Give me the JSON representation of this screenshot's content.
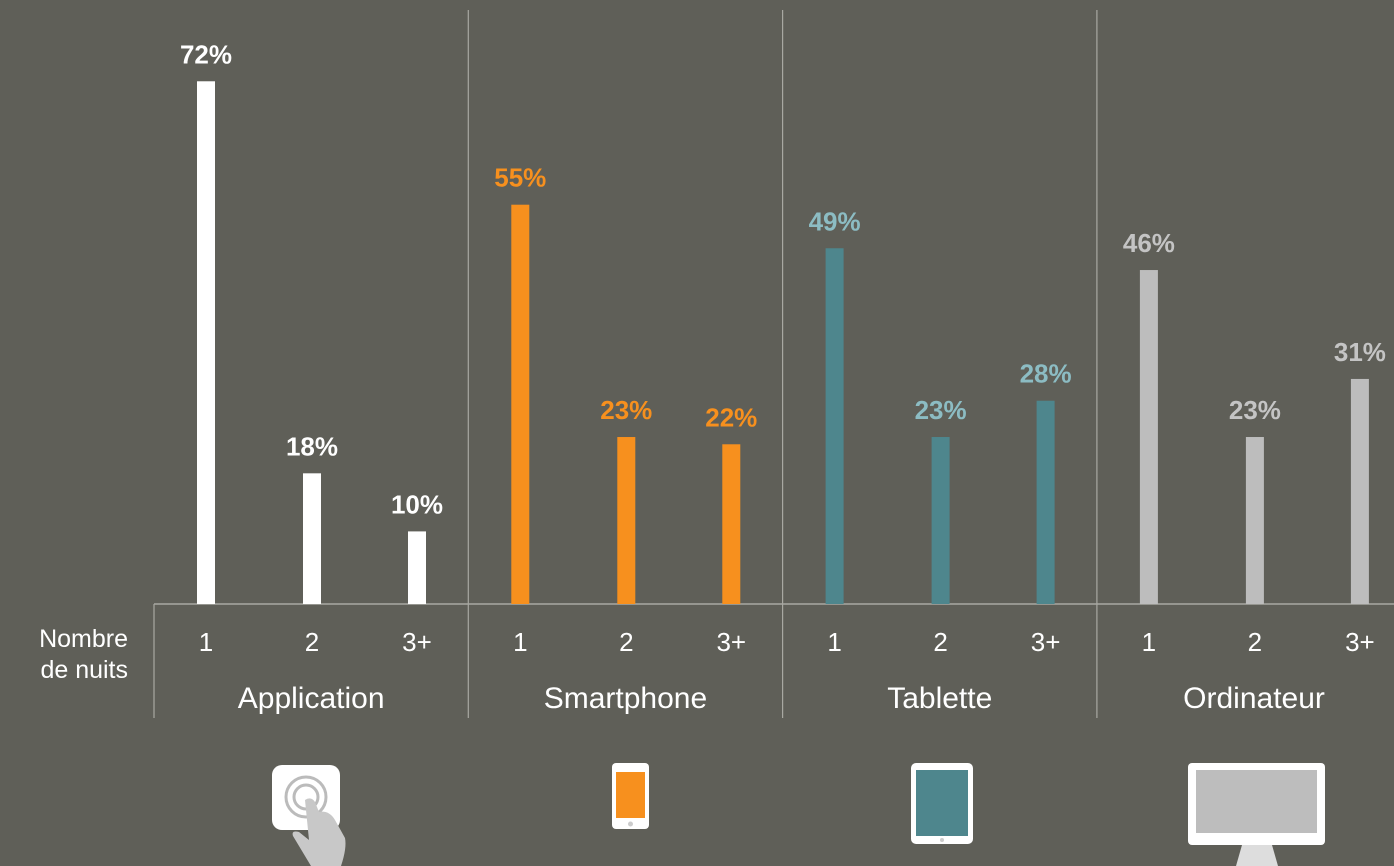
{
  "chart_data": {
    "type": "bar",
    "x_label": "Nombre de nuits",
    "groups": [
      {
        "name": "Application",
        "color": "#ffffff",
        "label_color": "#ffffff",
        "categories": [
          "1",
          "2",
          "3+"
        ],
        "values": [
          72,
          18,
          10
        ],
        "value_labels": [
          "72%",
          "18%",
          "10%"
        ]
      },
      {
        "name": "Smartphone",
        "color": "#f7901e",
        "label_color": "#f7901e",
        "categories": [
          "1",
          "2",
          "3+"
        ],
        "values": [
          55,
          23,
          22
        ],
        "value_labels": [
          "55%",
          "23%",
          "22%"
        ]
      },
      {
        "name": "Tablette",
        "color": "#4e868d",
        "label_color": "#8cbcc3",
        "categories": [
          "1",
          "2",
          "3+"
        ],
        "values": [
          49,
          23,
          28
        ],
        "value_labels": [
          "49%",
          "23%",
          "28%"
        ]
      },
      {
        "name": "Ordinateur",
        "color": "#bdbdbd",
        "label_color": "#c4c4c4",
        "categories": [
          "1",
          "2",
          "3+"
        ],
        "values": [
          46,
          23,
          31
        ],
        "value_labels": [
          "46%",
          "23%",
          "31%"
        ]
      }
    ]
  }
}
